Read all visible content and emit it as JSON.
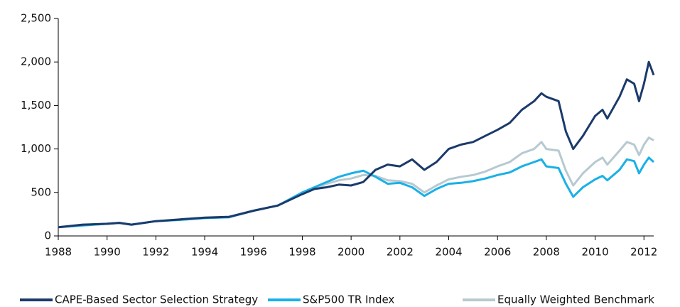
{
  "chart_data": {
    "type": "line",
    "x": [
      1988,
      1989,
      1990,
      1990.5,
      1991,
      1992,
      1993,
      1994,
      1995,
      1996,
      1997,
      1998,
      1998.5,
      1999,
      1999.5,
      2000,
      2000.5,
      2001,
      2001.5,
      2002,
      2002.5,
      2003,
      2003.5,
      2004,
      2004.5,
      2005,
      2005.5,
      2006,
      2006.5,
      2007,
      2007.5,
      2007.8,
      2008,
      2008.5,
      2008.8,
      2009.1,
      2009.5,
      2010,
      2010.3,
      2010.5,
      2011,
      2011.3,
      2011.6,
      2011.8,
      2012,
      2012.2,
      2012.4
    ],
    "series": [
      {
        "name": "CAPE-Based Sector Selection Strategy",
        "color": "#1b3a6b",
        "values": [
          100,
          130,
          140,
          150,
          130,
          170,
          190,
          210,
          220,
          290,
          350,
          480,
          540,
          560,
          590,
          580,
          620,
          760,
          820,
          800,
          880,
          760,
          850,
          1000,
          1050,
          1080,
          1150,
          1220,
          1300,
          1450,
          1550,
          1640,
          1600,
          1550,
          1200,
          1000,
          1150,
          1380,
          1450,
          1350,
          1600,
          1800,
          1750,
          1550,
          1750,
          2000,
          1850
        ]
      },
      {
        "name": "S&P500 TR Index",
        "color": "#1ab0e8",
        "values": [
          100,
          120,
          140,
          150,
          130,
          170,
          185,
          205,
          215,
          290,
          350,
          500,
          560,
          620,
          680,
          720,
          750,
          680,
          600,
          610,
          560,
          460,
          540,
          600,
          610,
          630,
          660,
          700,
          730,
          800,
          850,
          880,
          800,
          780,
          600,
          450,
          560,
          650,
          690,
          640,
          760,
          880,
          860,
          720,
          820,
          900,
          850
        ]
      },
      {
        "name": "Equally Weighted Benchmark",
        "color": "#b7c9d1",
        "values": [
          100,
          120,
          140,
          150,
          130,
          170,
          185,
          205,
          215,
          290,
          350,
          490,
          540,
          600,
          640,
          660,
          700,
          690,
          640,
          630,
          600,
          500,
          580,
          650,
          680,
          700,
          740,
          800,
          850,
          950,
          1000,
          1080,
          1000,
          980,
          750,
          580,
          720,
          850,
          900,
          820,
          980,
          1080,
          1050,
          930,
          1050,
          1130,
          1100
        ]
      }
    ],
    "xlim": [
      1988,
      2012.4
    ],
    "xticks": [
      1988,
      1990,
      1992,
      1994,
      1996,
      1998,
      2000,
      2002,
      2004,
      2006,
      2008,
      2010,
      2012
    ],
    "ylim": [
      0,
      2500
    ],
    "yticks": [
      0,
      500,
      {
        "value": 1000,
        "label": "1,000"
      },
      {
        "value": 1500,
        "label": "1,500"
      },
      {
        "value": 2000,
        "label": "2,000"
      },
      {
        "value": 2500,
        "label": "2,500"
      }
    ],
    "grid": false,
    "legend": "bottom"
  }
}
